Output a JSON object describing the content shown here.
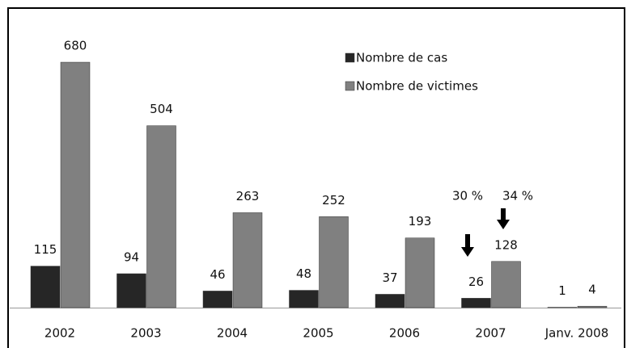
{
  "chart_data": {
    "type": "bar",
    "categories": [
      "2002",
      "2003",
      "2004",
      "2005",
      "2006",
      "2007",
      "Janv. 2008"
    ],
    "series": [
      {
        "name": "Nombre de cas",
        "color": "#262626",
        "values": [
          115,
          94,
          46,
          48,
          37,
          26,
          1
        ]
      },
      {
        "name": "Nombre de victimes",
        "color": "#808080",
        "values": [
          680,
          504,
          263,
          252,
          193,
          128,
          4
        ]
      }
    ],
    "annotations": [
      "30 %",
      "34 %"
    ],
    "legend": "top-right"
  }
}
